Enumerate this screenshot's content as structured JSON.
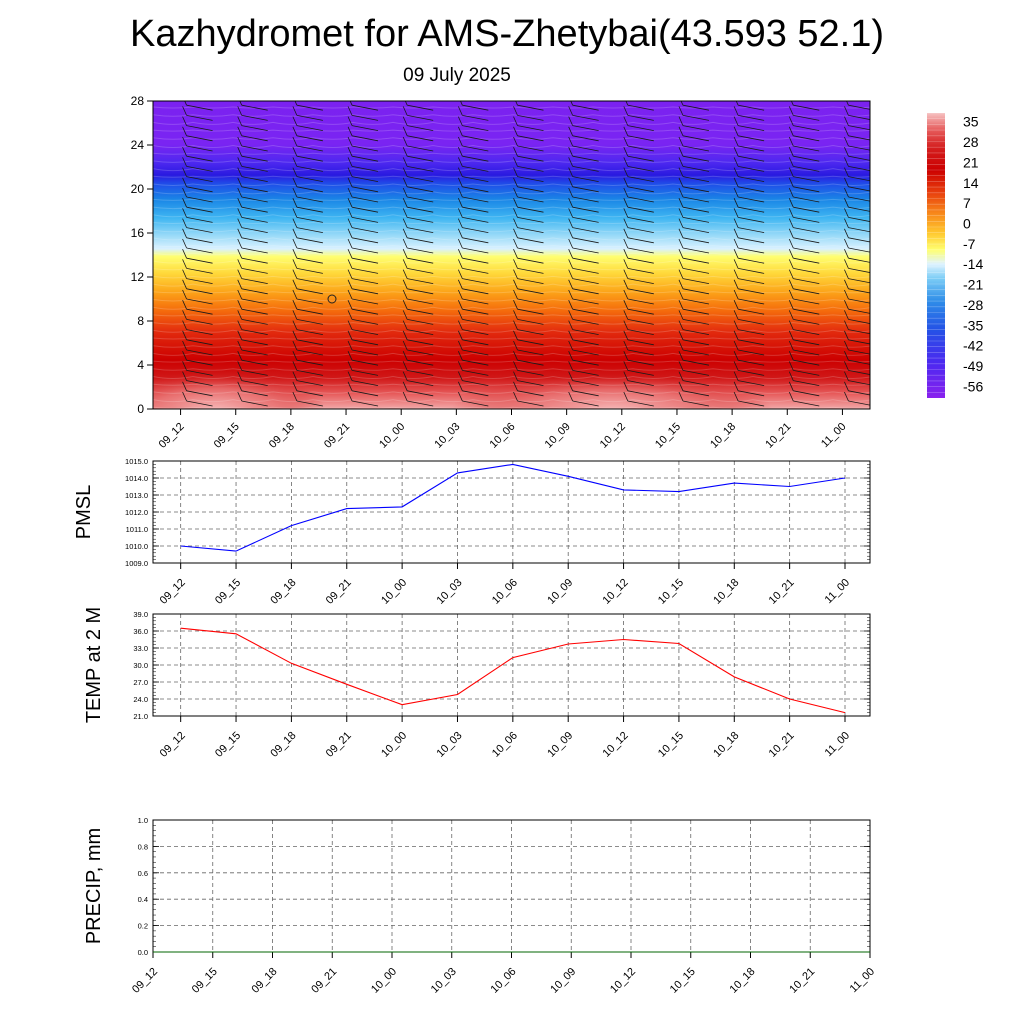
{
  "header": {
    "title": "Kazhydromet for AMS-Zhetybai(43.593 52.1)",
    "subtitle": "09 July 2025"
  },
  "chart_data": [
    {
      "type": "heatmap",
      "id": "cross-section",
      "title": "",
      "xlabel": "",
      "ylabel": "",
      "x": [
        "09_12",
        "09_15",
        "09_18",
        "09_21",
        "10_00",
        "10_03",
        "10_06",
        "10_09",
        "10_12",
        "10_15",
        "10_18",
        "10_21",
        "11_00"
      ],
      "yticks": [
        "0",
        "4",
        "8",
        "12",
        "16",
        "20",
        "24",
        "28"
      ],
      "ylim": [
        0,
        28
      ],
      "colorbar": {
        "labels": [
          "35",
          "28",
          "21",
          "14",
          "7",
          "0",
          "-7",
          "-14",
          "-21",
          "-28",
          "-35",
          "-42",
          "-49",
          "-56"
        ],
        "range": [
          -60,
          38
        ]
      },
      "overlay": "wind barbs"
    },
    {
      "type": "line",
      "id": "pmsl",
      "ylabel": "PMSL",
      "x": [
        "09_12",
        "09_15",
        "09_18",
        "09_21",
        "10_00",
        "10_03",
        "10_06",
        "10_09",
        "10_12",
        "10_15",
        "10_18",
        "10_21",
        "11_00"
      ],
      "yticks": [
        "1009.0",
        "1010.0",
        "1011.0",
        "1012.0",
        "1013.0",
        "1014.0",
        "1015.0"
      ],
      "ylim": [
        1009,
        1015
      ],
      "grid": true,
      "series": [
        {
          "values": [
            1010.0,
            1009.7,
            1011.2,
            1012.2,
            1012.3,
            1014.3,
            1014.8,
            1014.1,
            1013.3,
            1013.2,
            1013.7,
            1013.5,
            1014.0
          ],
          "color": "#0000ff"
        }
      ]
    },
    {
      "type": "line",
      "id": "temp2m",
      "ylabel": "TEMP at 2 M",
      "x": [
        "09_12",
        "09_15",
        "09_18",
        "09_21",
        "10_00",
        "10_03",
        "10_06",
        "10_09",
        "10_12",
        "10_15",
        "10_18",
        "10_21",
        "11_00"
      ],
      "yticks": [
        "21.0",
        "24.0",
        "27.0",
        "30.0",
        "33.0",
        "36.0",
        "39.0"
      ],
      "ylim": [
        21,
        39
      ],
      "grid": true,
      "series": [
        {
          "values": [
            36.5,
            35.5,
            30.3,
            26.6,
            23.0,
            24.8,
            31.3,
            33.7,
            34.5,
            33.8,
            27.9,
            24.0,
            21.6
          ],
          "color": "#ff0000"
        }
      ]
    },
    {
      "type": "line",
      "id": "precip",
      "ylabel": "PRECIP, mm",
      "x": [
        "09_12",
        "09_15",
        "09_18",
        "09_21",
        "10_00",
        "10_03",
        "10_06",
        "10_09",
        "10_12",
        "10_15",
        "10_18",
        "10_21",
        "11_00"
      ],
      "yticks": [
        "0.0",
        "0.2",
        "0.4",
        "0.6",
        "0.8",
        "1.0"
      ],
      "ylim": [
        0,
        1
      ],
      "grid": true,
      "series": [
        {
          "values": [
            0,
            0,
            0,
            0,
            0,
            0,
            0,
            0,
            0,
            0,
            0,
            0,
            0
          ],
          "color": "#006400"
        }
      ]
    }
  ]
}
